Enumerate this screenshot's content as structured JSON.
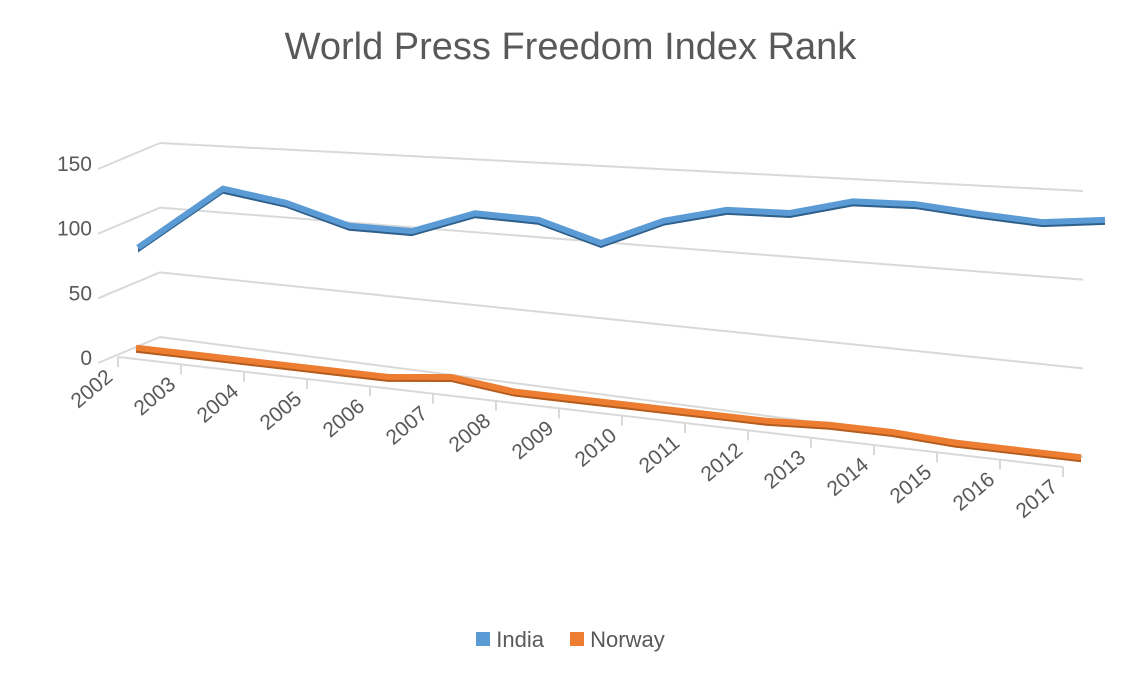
{
  "chart_data": {
    "type": "line",
    "title": "World Press Freedom Index Rank",
    "x": [
      "2002",
      "2003",
      "2004",
      "2005",
      "2006",
      "2007",
      "2008",
      "2009",
      "2010",
      "2011",
      "2012",
      "2013",
      "2014",
      "2015",
      "2016",
      "2017"
    ],
    "y_ticks": [
      "0",
      "50",
      "100",
      "150"
    ],
    "ylim": [
      0,
      150
    ],
    "xlabel": "",
    "ylabel": "",
    "grid": true,
    "legend_position": "bottom",
    "style": "3D line",
    "series": [
      {
        "name": "India",
        "color": "#5b9bd5",
        "values": [
          80,
          128,
          120,
          106,
          105,
          120,
          118,
          105,
          122,
          131,
          131,
          140,
          140,
          136,
          133,
          136
        ]
      },
      {
        "name": "Norway",
        "color": "#ed7d31",
        "values": [
          1,
          1,
          1,
          1,
          1,
          6,
          1,
          1,
          1,
          1,
          1,
          3,
          3,
          1,
          1,
          1
        ]
      }
    ]
  }
}
